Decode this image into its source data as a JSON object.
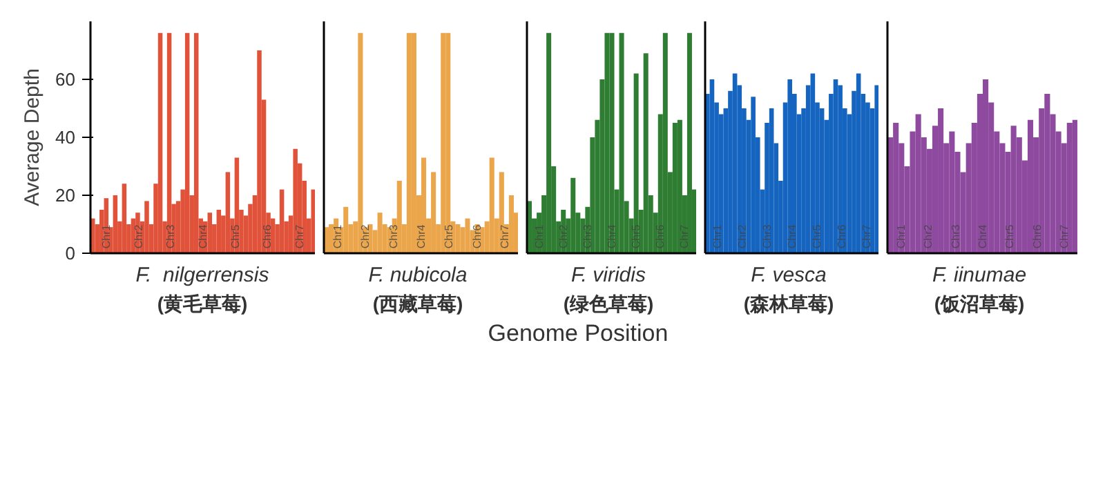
{
  "chart_data": [
    {
      "type": "bar",
      "title": "F.  nilgerrensis",
      "subtitle": "(黄毛草莓)",
      "ylabel": "Average Depth",
      "color": "#e0533a",
      "ylim": [
        0,
        80
      ],
      "yticks": [
        0,
        20,
        40,
        60
      ],
      "tick_labels": "y",
      "annotations": [
        "Chr1",
        "Chr2",
        "Chr3",
        "Chr4",
        "Chr5",
        "Chr6",
        "Chr7"
      ],
      "categories": [
        null,
        null,
        null,
        null,
        null,
        null,
        null,
        null,
        null,
        null,
        null,
        null,
        null,
        null,
        null,
        null,
        null,
        null,
        null,
        null,
        null,
        null,
        null,
        null,
        null,
        null,
        null,
        null,
        null,
        null,
        null,
        null,
        null,
        null,
        null,
        null,
        null,
        null,
        null,
        null,
        null,
        null,
        null,
        null,
        null,
        null,
        null,
        null,
        null,
        null
      ],
      "values": [
        12,
        10,
        15,
        19,
        9,
        20,
        11,
        24,
        10,
        12,
        14,
        11,
        18,
        10,
        24,
        76,
        11,
        76,
        17,
        18,
        22,
        76,
        20,
        76,
        12,
        11,
        14,
        10,
        15,
        13,
        28,
        12,
        33,
        15,
        13,
        17,
        20,
        70,
        53,
        14,
        12,
        10,
        22,
        11,
        13,
        36,
        31,
        25,
        12,
        22
      ]
    },
    {
      "type": "bar",
      "title": "F. nubicola",
      "subtitle": "(西藏草莓)",
      "color": "#eba54a",
      "ylim": [
        0,
        80
      ],
      "yticks": [
        0,
        20,
        40,
        60
      ],
      "tick_labels": false,
      "annotations": [
        "Chr1",
        "Chr2",
        "Chr3",
        "Chr4",
        "Chr5",
        "Chr6",
        "Chr7"
      ],
      "categories": [
        null,
        null,
        null,
        null,
        null,
        null,
        null,
        null,
        null,
        null,
        null,
        null,
        null,
        null,
        null,
        null,
        null,
        null,
        null,
        null,
        null,
        null,
        null,
        null,
        null,
        null,
        null,
        null,
        null,
        null,
        null,
        null,
        null,
        null,
        null,
        null,
        null,
        null,
        null,
        null
      ],
      "values": [
        9,
        10,
        12,
        9,
        16,
        10,
        11,
        76,
        9,
        10,
        8,
        14,
        10,
        9,
        12,
        25,
        10,
        76,
        76,
        20,
        33,
        12,
        28,
        10,
        76,
        76,
        11,
        10,
        9,
        12,
        8,
        10,
        9,
        11,
        33,
        12,
        28,
        10,
        20,
        14
      ]
    },
    {
      "type": "bar",
      "title": "F. viridis",
      "subtitle": "(绿色草莓)",
      "xlabel": "Genome Position",
      "color": "#2e7d32",
      "ylim": [
        0,
        80
      ],
      "yticks": [
        0,
        20,
        40,
        60
      ],
      "tick_labels": false,
      "annotations": [
        "Chr1",
        "Chr2",
        "Chr3",
        "Chr4",
        "Chr5",
        "Chr6",
        "Chr7"
      ],
      "categories": [
        null,
        null,
        null,
        null,
        null,
        null,
        null,
        null,
        null,
        null,
        null,
        null,
        null,
        null,
        null,
        null,
        null,
        null,
        null,
        null,
        null,
        null,
        null,
        null,
        null,
        null,
        null,
        null,
        null,
        null,
        null,
        null,
        null,
        null,
        null
      ],
      "values": [
        18,
        12,
        14,
        20,
        76,
        30,
        11,
        15,
        12,
        26,
        14,
        12,
        16,
        40,
        46,
        60,
        76,
        76,
        22,
        76,
        18,
        12,
        62,
        15,
        69,
        20,
        14,
        48,
        76,
        28,
        45,
        46,
        20,
        76,
        22
      ]
    },
    {
      "type": "bar",
      "title": "F. vesca",
      "subtitle": "(森林草莓)",
      "color": "#1565c0",
      "ylim": [
        0,
        80
      ],
      "yticks": [
        0,
        20,
        40,
        60
      ],
      "tick_labels": false,
      "annotations": [
        "Chr1",
        "Chr2",
        "Chr3",
        "Chr4",
        "Chr5",
        "Chr6",
        "Chr7"
      ],
      "categories": [
        null,
        null,
        null,
        null,
        null,
        null,
        null,
        null,
        null,
        null,
        null,
        null,
        null,
        null,
        null,
        null,
        null,
        null,
        null,
        null,
        null,
        null,
        null,
        null,
        null,
        null,
        null,
        null,
        null,
        null,
        null,
        null,
        null,
        null,
        null,
        null,
        null,
        null
      ],
      "values": [
        55,
        60,
        52,
        48,
        50,
        56,
        62,
        58,
        50,
        46,
        54,
        40,
        22,
        45,
        50,
        38,
        25,
        52,
        60,
        55,
        48,
        50,
        58,
        62,
        52,
        50,
        46,
        55,
        60,
        58,
        50,
        48,
        56,
        62,
        55,
        52,
        50,
        58
      ]
    },
    {
      "type": "bar",
      "title": "F. iinumae",
      "subtitle": "(饭沼草莓)",
      "color": "#8e4a9e",
      "ylim": [
        0,
        80
      ],
      "yticks": [
        0,
        20,
        40,
        60
      ],
      "tick_labels": false,
      "annotations": [
        "Chr1",
        "Chr2",
        "Chr3",
        "Chr4",
        "Chr5",
        "Chr6",
        "Chr7"
      ],
      "categories": [
        null,
        null,
        null,
        null,
        null,
        null,
        null,
        null,
        null,
        null,
        null,
        null,
        null,
        null,
        null,
        null,
        null,
        null,
        null,
        null,
        null,
        null,
        null,
        null,
        null,
        null,
        null,
        null,
        null,
        null,
        null,
        null,
        null,
        null
      ],
      "values": [
        40,
        45,
        38,
        30,
        42,
        48,
        40,
        36,
        44,
        50,
        38,
        42,
        35,
        28,
        38,
        45,
        55,
        60,
        52,
        42,
        38,
        35,
        44,
        40,
        32,
        46,
        40,
        50,
        55,
        48,
        42,
        38,
        45,
        46
      ]
    }
  ]
}
